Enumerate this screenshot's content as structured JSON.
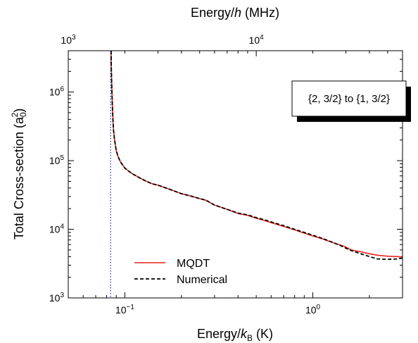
{
  "chart_data": {
    "type": "line",
    "xlabel_bottom": {
      "main": "Energy/",
      "italic": "k",
      "sub": "B",
      "tail": " (K)"
    },
    "xlabel_top": {
      "main": "Energy/",
      "italic": "h",
      "tail": " (MHz)"
    },
    "ylabel": {
      "main": "Total Cross-section (a",
      "sub": "0",
      "sup": "2",
      "tail": ")"
    },
    "x_scale": "log",
    "y_scale": "log",
    "xlim": [
      0.05,
      3.0
    ],
    "ylim": [
      1000,
      4000000
    ],
    "top_axis_range_mhz": [
      1000,
      60000
    ],
    "grid": false,
    "legend_position": "bottom-left",
    "bottom_ticks": [
      {
        "value": 0.1,
        "base": "10",
        "exp": "−1"
      },
      {
        "value": 1.0,
        "base": "10",
        "exp": "0"
      }
    ],
    "top_ticks": [
      {
        "value": 1000,
        "base": "10",
        "exp": "3"
      },
      {
        "value": 10000,
        "base": "10",
        "exp": "4"
      }
    ],
    "y_ticks": [
      {
        "value": 1000,
        "base": "10",
        "exp": "3"
      },
      {
        "value": 10000,
        "base": "10",
        "exp": "4"
      },
      {
        "value": 100000,
        "base": "10",
        "exp": "5"
      },
      {
        "value": 1000000,
        "base": "10",
        "exp": "6"
      }
    ],
    "threshold_line": {
      "x": 0.084,
      "color": "#1f2a7a",
      "style": "dotted"
    },
    "annotation": "{2, 3/2} to {1, 3/2}",
    "series": [
      {
        "name": "MQDT",
        "color": "#e8221b",
        "style": "solid",
        "x": [
          0.0845,
          0.0847,
          0.085,
          0.0855,
          0.086,
          0.0865,
          0.087,
          0.088,
          0.089,
          0.09,
          0.092,
          0.095,
          0.1,
          0.105,
          0.11,
          0.12,
          0.13,
          0.14,
          0.15,
          0.17,
          0.2,
          0.22,
          0.25,
          0.27,
          0.3,
          0.35,
          0.4,
          0.45,
          0.5,
          0.55,
          0.6,
          0.7,
          0.8,
          0.9,
          1.0,
          1.1,
          1.2,
          1.3,
          1.4,
          1.5,
          1.6,
          1.8,
          2.0,
          2.2,
          2.5,
          2.8,
          3.0
        ],
        "y": [
          4000000,
          2500000,
          1500000,
          900000,
          550000,
          380000,
          280000,
          210000,
          170000,
          140000,
          115000,
          95000,
          78000,
          70000,
          64000,
          56000,
          50000,
          46000,
          44000,
          39000,
          33000,
          31000,
          28000,
          26500,
          22500,
          19500,
          17000,
          16000,
          14500,
          13500,
          12500,
          11000,
          9800,
          8800,
          8000,
          7400,
          6800,
          6300,
          5900,
          5500,
          5000,
          4700,
          4400,
          4200,
          4050,
          4000,
          3950
        ]
      },
      {
        "name": "Numerical",
        "color": "#000000",
        "style": "dashed",
        "x": [
          0.0845,
          0.0847,
          0.085,
          0.0855,
          0.086,
          0.0865,
          0.087,
          0.088,
          0.089,
          0.09,
          0.092,
          0.095,
          0.1,
          0.105,
          0.11,
          0.12,
          0.13,
          0.14,
          0.15,
          0.17,
          0.2,
          0.22,
          0.25,
          0.27,
          0.3,
          0.35,
          0.4,
          0.45,
          0.5,
          0.55,
          0.6,
          0.7,
          0.8,
          0.9,
          1.0,
          1.1,
          1.2,
          1.3,
          1.4,
          1.5,
          1.6,
          1.8,
          2.0,
          2.2,
          2.5,
          2.8,
          3.0
        ],
        "y": [
          4000000,
          2500000,
          1500000,
          900000,
          550000,
          380000,
          280000,
          210000,
          170000,
          140000,
          115000,
          95000,
          78000,
          70000,
          64000,
          56000,
          50000,
          46000,
          44000,
          39000,
          33000,
          31000,
          28000,
          26500,
          22500,
          19500,
          17200,
          16200,
          14800,
          13800,
          12800,
          11300,
          10000,
          9000,
          8200,
          7500,
          6900,
          6300,
          5800,
          5300,
          4900,
          4400,
          4000,
          3700,
          3650,
          3700,
          3800
        ]
      }
    ]
  }
}
